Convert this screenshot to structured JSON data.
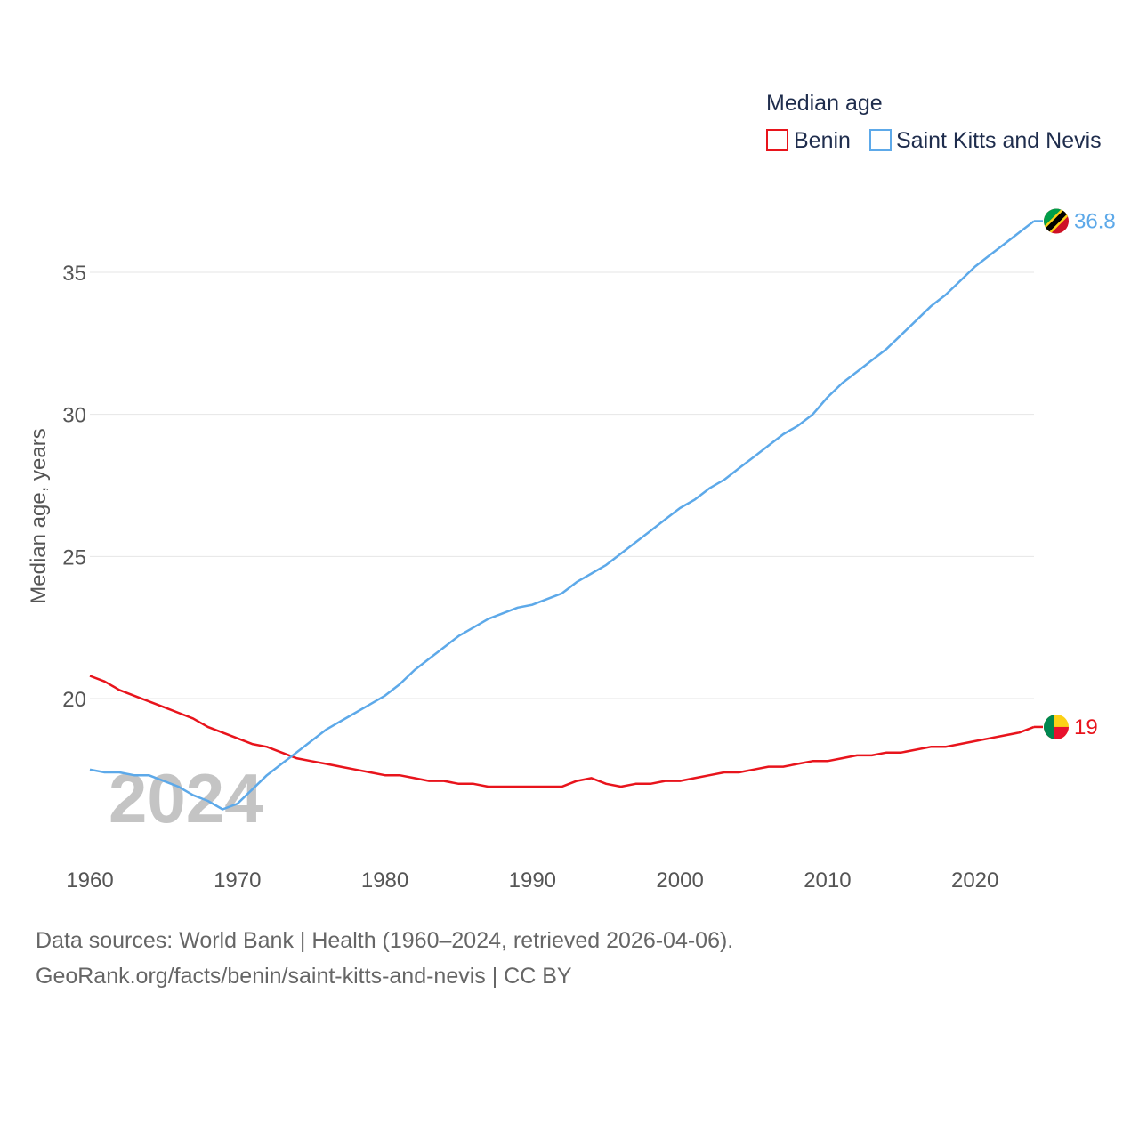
{
  "chart_data": {
    "type": "line",
    "legend_title": "Median age",
    "legend_position": "top-right",
    "ylabel": "Median age, years",
    "xlabel": "",
    "xlim": [
      1960,
      2024
    ],
    "ylim": [
      15,
      38
    ],
    "y_ticks": [
      20,
      25,
      30,
      35
    ],
    "x_ticks": [
      1960,
      1970,
      1980,
      1990,
      2000,
      2010,
      2020
    ],
    "grid": true,
    "year_label": "2024",
    "series": [
      {
        "name": "Benin",
        "color": "#e8141c",
        "flag_icon": "benin-flag-icon",
        "end_label": "19",
        "x": [
          1960,
          1961,
          1962,
          1963,
          1964,
          1965,
          1966,
          1967,
          1968,
          1969,
          1970,
          1971,
          1972,
          1973,
          1974,
          1975,
          1976,
          1977,
          1978,
          1979,
          1980,
          1981,
          1982,
          1983,
          1984,
          1985,
          1986,
          1987,
          1988,
          1989,
          1990,
          1991,
          1992,
          1993,
          1994,
          1995,
          1996,
          1997,
          1998,
          1999,
          2000,
          2001,
          2002,
          2003,
          2004,
          2005,
          2006,
          2007,
          2008,
          2009,
          2010,
          2011,
          2012,
          2013,
          2014,
          2015,
          2016,
          2017,
          2018,
          2019,
          2020,
          2021,
          2022,
          2023,
          2024
        ],
        "values": [
          20.8,
          20.6,
          20.3,
          20.1,
          19.9,
          19.7,
          19.5,
          19.3,
          19.0,
          18.8,
          18.6,
          18.4,
          18.3,
          18.1,
          17.9,
          17.8,
          17.7,
          17.6,
          17.5,
          17.4,
          17.3,
          17.3,
          17.2,
          17.1,
          17.1,
          17.0,
          17.0,
          16.9,
          16.9,
          16.9,
          16.9,
          16.9,
          16.9,
          17.1,
          17.2,
          17.0,
          16.9,
          17.0,
          17.0,
          17.1,
          17.1,
          17.2,
          17.3,
          17.4,
          17.4,
          17.5,
          17.6,
          17.6,
          17.7,
          17.8,
          17.8,
          17.9,
          18.0,
          18.0,
          18.1,
          18.1,
          18.2,
          18.3,
          18.3,
          18.4,
          18.5,
          18.6,
          18.7,
          18.8,
          19.0
        ]
      },
      {
        "name": "Saint Kitts and Nevis",
        "color": "#5da9e9",
        "flag_icon": "saint-kitts-and-nevis-flag-icon",
        "end_label": "36.8",
        "x": [
          1960,
          1961,
          1962,
          1963,
          1964,
          1965,
          1966,
          1967,
          1968,
          1969,
          1970,
          1971,
          1972,
          1973,
          1974,
          1975,
          1976,
          1977,
          1978,
          1979,
          1980,
          1981,
          1982,
          1983,
          1984,
          1985,
          1986,
          1987,
          1988,
          1989,
          1990,
          1991,
          1992,
          1993,
          1994,
          1995,
          1996,
          1997,
          1998,
          1999,
          2000,
          2001,
          2002,
          2003,
          2004,
          2005,
          2006,
          2007,
          2008,
          2009,
          2010,
          2011,
          2012,
          2013,
          2014,
          2015,
          2016,
          2017,
          2018,
          2019,
          2020,
          2021,
          2022,
          2023,
          2024
        ],
        "values": [
          17.5,
          17.4,
          17.4,
          17.3,
          17.3,
          17.1,
          16.9,
          16.6,
          16.4,
          16.1,
          16.3,
          16.8,
          17.3,
          17.7,
          18.1,
          18.5,
          18.9,
          19.2,
          19.5,
          19.8,
          20.1,
          20.5,
          21.0,
          21.4,
          21.8,
          22.2,
          22.5,
          22.8,
          23.0,
          23.2,
          23.3,
          23.5,
          23.7,
          24.1,
          24.4,
          24.7,
          25.1,
          25.5,
          25.9,
          26.3,
          26.7,
          27.0,
          27.4,
          27.7,
          28.1,
          28.5,
          28.9,
          29.3,
          29.6,
          30.0,
          30.6,
          31.1,
          31.5,
          31.9,
          32.3,
          32.8,
          33.3,
          33.8,
          34.2,
          34.7,
          35.2,
          35.6,
          36.0,
          36.4,
          36.8
        ]
      }
    ]
  },
  "source": {
    "line1": "Data sources: World Bank | Health (1960–2024, retrieved 2026-04-06).",
    "line2": "GeoRank.org/facts/benin/saint-kitts-and-nevis | CC BY"
  }
}
